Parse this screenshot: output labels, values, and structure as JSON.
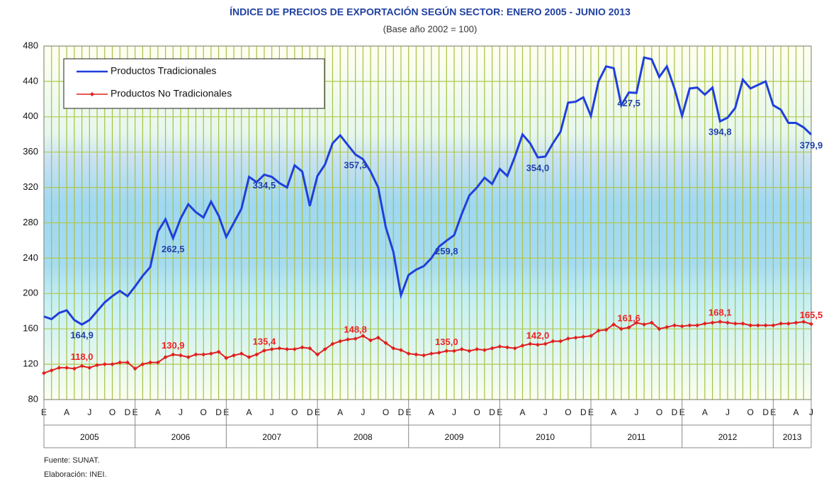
{
  "chart_data": {
    "type": "line",
    "title": "ÍNDICE DE PRECIOS DE EXPORTACIÓN SEGÚN SECTOR: ENERO 2005 - JUNIO 2013",
    "subtitle": "(Base año 2002 = 100)",
    "categories": [
      "E",
      null,
      null,
      "A",
      null,
      null,
      "J",
      null,
      null,
      "O",
      null,
      "D",
      "E",
      null,
      null,
      "A",
      null,
      null,
      "J",
      null,
      null,
      "O",
      null,
      "D",
      "E",
      null,
      null,
      "A",
      null,
      null,
      "J",
      null,
      null,
      "O",
      null,
      "D",
      "E",
      null,
      null,
      "A",
      null,
      null,
      "J",
      null,
      null,
      "O",
      null,
      "D",
      "E",
      null,
      null,
      "A",
      null,
      null,
      "J",
      null,
      null,
      "O",
      null,
      "D",
      "E",
      null,
      null,
      "A",
      null,
      null,
      "J",
      null,
      null,
      "O",
      null,
      "D",
      "E",
      null,
      null,
      "A",
      null,
      null,
      "J",
      null,
      null,
      "O",
      null,
      "D",
      "E",
      null,
      null,
      "A",
      null,
      null,
      "J",
      null,
      null,
      "O",
      null,
      "D",
      "E",
      null,
      null,
      "A",
      null,
      "J"
    ],
    "years": [
      "2005",
      "2006",
      "2007",
      "2008",
      "2009",
      "2010",
      "2011",
      "2012",
      "2013"
    ],
    "series": [
      {
        "name": "Productos Tradicionales",
        "color": "#1f3fdc",
        "label_color": "#2040a8",
        "values": [
          174,
          171,
          178,
          181,
          170,
          164.9,
          170,
          180,
          190,
          197,
          203,
          197,
          208,
          220,
          230,
          270,
          284,
          262.5,
          285,
          301,
          292,
          286,
          304,
          288,
          264,
          280,
          296,
          332,
          326,
          334.5,
          332,
          325,
          320,
          345,
          338,
          299,
          333,
          346,
          370,
          379,
          368,
          357.3,
          352,
          338,
          320,
          275,
          247,
          198,
          221,
          227,
          231,
          240,
          253,
          259.8,
          266,
          290,
          311,
          320,
          331,
          324,
          341,
          333,
          355,
          380,
          370,
          354.0,
          355,
          370,
          383,
          416,
          417,
          422,
          401,
          440,
          457,
          455,
          413,
          427.5,
          427,
          467,
          465,
          445,
          457,
          432,
          401,
          432,
          433,
          425,
          433,
          394.8,
          399,
          410,
          442,
          432,
          436,
          440,
          413,
          408,
          393,
          393,
          388,
          379.9
        ],
        "value_labels": [
          null,
          null,
          null,
          null,
          null,
          "164,9",
          null,
          null,
          null,
          null,
          null,
          null,
          null,
          null,
          null,
          null,
          null,
          "262,5",
          null,
          null,
          null,
          null,
          null,
          null,
          null,
          null,
          null,
          null,
          null,
          "334,5",
          null,
          null,
          null,
          null,
          null,
          null,
          null,
          null,
          null,
          null,
          null,
          "357,3",
          null,
          null,
          null,
          null,
          null,
          null,
          null,
          null,
          null,
          null,
          null,
          "259,8",
          null,
          null,
          null,
          null,
          null,
          null,
          null,
          null,
          null,
          null,
          null,
          "354,0",
          null,
          null,
          null,
          null,
          null,
          null,
          null,
          null,
          null,
          null,
          null,
          "427,5",
          null,
          null,
          null,
          null,
          null,
          null,
          null,
          null,
          null,
          null,
          null,
          "394,8",
          null,
          null,
          null,
          null,
          null,
          null,
          null,
          null,
          null,
          null,
          null,
          "379,9"
        ]
      },
      {
        "name": "Productos No Tradicionales",
        "color": "#e0201c",
        "label_color": "#ee2222",
        "values": [
          110,
          113,
          116,
          116,
          115,
          118.0,
          116,
          119,
          120,
          120,
          122,
          122,
          115,
          120,
          122,
          122,
          128,
          130.9,
          130,
          128,
          131,
          131,
          132,
          134,
          127,
          130,
          132,
          128,
          131,
          135.4,
          137,
          138,
          137,
          137,
          139,
          138,
          131,
          137,
          143,
          146,
          148,
          148.8,
          152,
          147,
          150,
          144,
          138,
          136,
          132,
          131,
          130,
          132,
          133,
          135.0,
          135,
          137,
          135,
          137,
          136,
          138,
          140,
          139,
          138,
          141,
          143,
          142.0,
          143,
          146,
          146,
          149,
          150,
          151,
          152,
          158,
          159,
          165,
          160,
          161.6,
          167,
          165,
          167,
          160,
          162,
          164,
          163,
          164,
          164,
          166,
          167,
          168.1,
          167,
          166,
          166,
          164,
          164,
          164,
          164,
          166,
          166,
          167,
          168,
          165.5
        ],
        "value_labels": [
          null,
          null,
          null,
          null,
          null,
          "118,0",
          null,
          null,
          null,
          null,
          null,
          null,
          null,
          null,
          null,
          null,
          null,
          "130,9",
          null,
          null,
          null,
          null,
          null,
          null,
          null,
          null,
          null,
          null,
          null,
          "135,4",
          null,
          null,
          null,
          null,
          null,
          null,
          null,
          null,
          null,
          null,
          null,
          "148,8",
          null,
          null,
          null,
          null,
          null,
          null,
          null,
          null,
          null,
          null,
          null,
          "135,0",
          null,
          null,
          null,
          null,
          null,
          null,
          null,
          null,
          null,
          null,
          null,
          "142,0",
          null,
          null,
          null,
          null,
          null,
          null,
          null,
          null,
          null,
          null,
          null,
          "161,6",
          null,
          null,
          null,
          null,
          null,
          null,
          null,
          null,
          null,
          null,
          null,
          "168,1",
          null,
          null,
          null,
          null,
          null,
          null,
          null,
          null,
          null,
          null,
          null,
          "165,5"
        ]
      }
    ],
    "ylim": [
      80,
      480
    ],
    "yticks": [
      80,
      120,
      160,
      200,
      240,
      280,
      320,
      360,
      400,
      440,
      480
    ],
    "grid": true,
    "legend": "upper left",
    "notes": [
      "Fuente: SUNAT.",
      "Elaboración: INEI."
    ]
  }
}
